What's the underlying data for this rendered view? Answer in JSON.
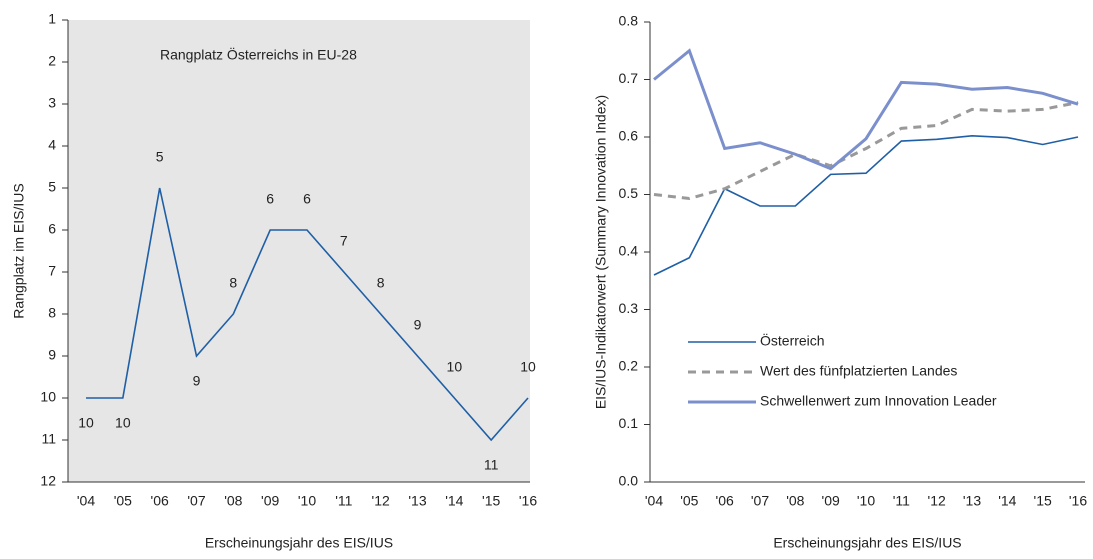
{
  "chart_data": [
    {
      "type": "line",
      "annotation": "Rangplatz Österreichs in EU-28",
      "xlabel": "Erscheinungsjahr des EIS/IUS",
      "ylabel": "Rangplatz im EIS/IUS",
      "categories": [
        "'04",
        "'05",
        "'06",
        "'07",
        "'08",
        "'09",
        "'10",
        "'11",
        "'12",
        "'13",
        "'14",
        "'15",
        "'16"
      ],
      "values": [
        10,
        10,
        5,
        9,
        8,
        6,
        6,
        7,
        8,
        9,
        10,
        11,
        10
      ],
      "color": "#1f5fa6",
      "ylim": [
        1,
        12
      ],
      "yticks": [
        1,
        2,
        3,
        4,
        5,
        6,
        7,
        8,
        9,
        10,
        11,
        12
      ],
      "y_inverted": true,
      "data_labels": true,
      "background": "#e6e6e6"
    },
    {
      "type": "line",
      "xlabel": "Erscheinungsjahr des EIS/IUS",
      "ylabel": "EIS/IUS-Indikatorwert (Summary Innovation Index)",
      "categories": [
        "'04",
        "'05",
        "'06",
        "'07",
        "'08",
        "'09",
        "'10",
        "'11",
        "'12",
        "'13",
        "'14",
        "'15",
        "'16"
      ],
      "series": [
        {
          "name": "Österreich",
          "color": "#1f5fa6",
          "width": 1.6,
          "dash": false,
          "values": [
            0.36,
            0.39,
            0.51,
            0.48,
            0.48,
            0.535,
            0.537,
            0.593,
            0.596,
            0.602,
            0.599,
            0.587,
            0.6
          ]
        },
        {
          "name": "Wert des fünfplatzierten Landes",
          "color": "#999999",
          "width": 3,
          "dash": true,
          "values": [
            0.5,
            0.493,
            0.51,
            0.54,
            0.57,
            0.55,
            0.58,
            0.615,
            0.62,
            0.648,
            0.645,
            0.648,
            0.66
          ]
        },
        {
          "name": "Schwellenwert zum Innovation Leader",
          "color": "#7b8fcc",
          "width": 3,
          "dash": false,
          "values": [
            0.7,
            0.75,
            0.58,
            0.59,
            0.57,
            0.545,
            0.597,
            0.695,
            0.692,
            0.683,
            0.686,
            0.676,
            0.657
          ]
        }
      ],
      "ylim": [
        0,
        0.8
      ],
      "yticks": [
        {
          "value": 0,
          "label": "0.0"
        },
        0.1,
        0.2,
        0.3,
        0.4,
        0.5,
        0.6,
        0.7,
        0.8
      ],
      "legend": "lower left",
      "background": "#ffffff"
    }
  ]
}
